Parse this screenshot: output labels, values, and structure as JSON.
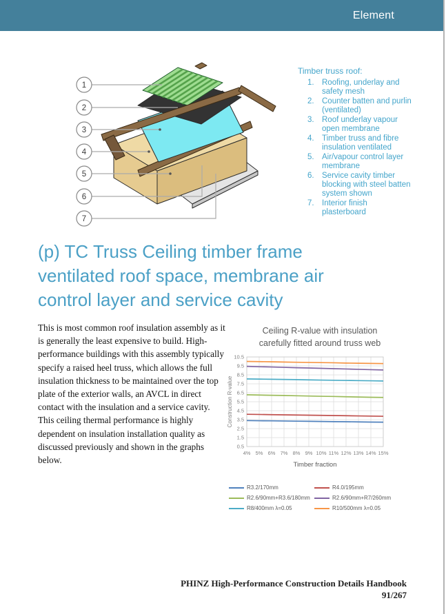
{
  "header": {
    "title": "Element",
    "bg_color": "#44809b"
  },
  "truss_legend": {
    "title": "Timber truss roof:",
    "text_color": "#44a5cb",
    "items": [
      {
        "num": "1.",
        "text": "Roofing, underlay and safety mesh"
      },
      {
        "num": "2.",
        "text": "Counter batten and purlin (ventilated)"
      },
      {
        "num": "3.",
        "text": "Roof underlay vapour open membrane"
      },
      {
        "num": "4.",
        "text": "Timber truss and fibre insulation ventilated"
      },
      {
        "num": "5.",
        "text": "Air/vapour control layer membrane"
      },
      {
        "num": "6.",
        "text": "Service cavity timber blocking with steel batten system shown"
      },
      {
        "num": "7.",
        "text": "Interior finish plasterboard"
      }
    ]
  },
  "diagram": {
    "callouts": [
      "1",
      "2",
      "3",
      "4",
      "5",
      "6",
      "7"
    ],
    "colors": {
      "roofing": "#9edc90",
      "roofing_stripe": "#55a24b",
      "underlay": "#333333",
      "membrane": "#7de9f2",
      "insulation_top": "#efdaa5",
      "insulation_left": "#e6cb90",
      "insulation_right": "#dbbd7e",
      "avcl": "#a9d787",
      "plasterboard": "#e4e4e4",
      "plasterboard_side": "#c6c6c6",
      "timber": "#8a6a45",
      "timber_dark": "#75583a",
      "steel": "#cfcfcf"
    }
  },
  "heading": {
    "color": "#4ba0c6",
    "title": "(p) TC Truss Ceiling timber frame ventilated roof space, membrane air control layer and service cavity",
    "lines": [
      "(p) TC Truss Ceiling timber frame",
      "ventilated roof space, membrane air",
      "control layer and service cavity"
    ]
  },
  "body": {
    "paragraph": "This is most common roof insulation assembly as it is generally the least expensive to build. High-performance buildings with this assembly typically specify a raised heel truss, which allows the full insulation thickness to be maintained over the top plate of the exterior walls, an AVCL in direct contact with the insulation and a service cavity. This ceiling thermal performance is highly dependent on insulation installation quality as discussed previously and shown in the graphs below."
  },
  "chart_data": {
    "type": "line",
    "title": "Ceiling R-value with insulation carefully fitted around truss web",
    "title_lines": [
      "Ceiling R-value with insulation",
      "carefully fitted around truss web"
    ],
    "xlabel": "Timber fraction",
    "ylabel": "Construction R-value",
    "x_categories": [
      "4%",
      "5%",
      "6%",
      "7%",
      "8%",
      "9%",
      "10%",
      "11%",
      "12%",
      "13%",
      "14%",
      "15%"
    ],
    "ylim": [
      0.5,
      10.5
    ],
    "y_ticks": [
      0.5,
      1.5,
      2.5,
      3.5,
      4.5,
      5.5,
      6.5,
      7.5,
      8.5,
      9.5,
      10.5
    ],
    "grid": true,
    "legend_position": "bottom",
    "series": [
      {
        "name": "R3.2/170mm",
        "color": "#4F81BD",
        "values": [
          3.4,
          3.38,
          3.37,
          3.35,
          3.33,
          3.32,
          3.3,
          3.28,
          3.27,
          3.25,
          3.23,
          3.22
        ]
      },
      {
        "name": "R4.0/195mm",
        "color": "#C0504D",
        "values": [
          4.1,
          4.08,
          4.06,
          4.04,
          4.02,
          4.0,
          3.98,
          3.96,
          3.94,
          3.92,
          3.9,
          3.88
        ]
      },
      {
        "name": "R2.6/90mm+R3.6/180mm",
        "color": "#9BBB59",
        "values": [
          6.28,
          6.25,
          6.22,
          6.2,
          6.17,
          6.14,
          6.11,
          6.09,
          6.06,
          6.03,
          6.0,
          5.98
        ]
      },
      {
        "name": "R2.6/90mm+R7/260mm",
        "color": "#8064A2",
        "values": [
          9.45,
          9.41,
          9.38,
          9.34,
          9.3,
          9.27,
          9.23,
          9.19,
          9.16,
          9.12,
          9.08,
          9.05
        ]
      },
      {
        "name": "R8/400mm λ=0.05",
        "color": "#4BACC6",
        "values": [
          8.05,
          8.03,
          8.01,
          7.99,
          7.97,
          7.94,
          7.92,
          7.9,
          7.88,
          7.86,
          7.84,
          7.82
        ]
      },
      {
        "name": "R10/500mm λ=0.05",
        "color": "#F79646",
        "values": [
          10.0,
          9.98,
          9.96,
          9.93,
          9.91,
          9.89,
          9.87,
          9.85,
          9.82,
          9.8,
          9.78,
          9.76
        ]
      }
    ]
  },
  "footer": {
    "title": "PHINZ High-Performance Construction Details Handbook",
    "page": "91/267"
  }
}
